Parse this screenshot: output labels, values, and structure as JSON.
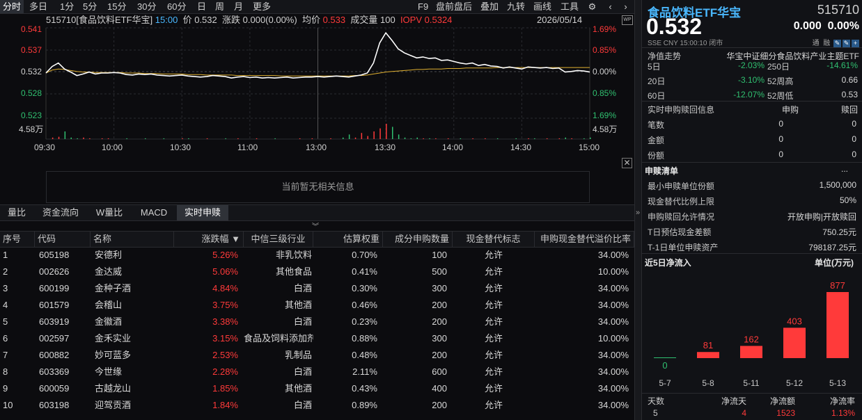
{
  "toolbar": {
    "left_items": [
      "分时",
      "多日",
      "1分",
      "5分",
      "15分",
      "30分",
      "60分",
      "日",
      "周",
      "月",
      "更多"
    ],
    "right_items": [
      "F9",
      "盘前盘后",
      "叠加",
      "九转",
      "画线",
      "工具"
    ],
    "active": "分时"
  },
  "chart": {
    "header": {
      "name": "515710[食品饮料ETF华宝]",
      "time": "15:00",
      "price_label": "价",
      "price": "0.532",
      "chg_label": "涨跌",
      "chg": "0.000(0.00%)",
      "avg_label": "均价",
      "avg": "0.533",
      "vol_label": "成交量",
      "vol": "100",
      "iopv_label": "IOPV",
      "iopv": "0.5324",
      "date": "2026/05/14"
    },
    "y_left": [
      "0.541",
      "0.537",
      "0.532",
      "0.528",
      "0.523"
    ],
    "y_right": [
      "1.69%",
      "0.85%",
      "0.00%",
      "0.85%",
      "1.69%"
    ],
    "vol_label": "4.58万",
    "x_labels": [
      "09:30",
      "10:00",
      "10:30",
      "11:00",
      "13:00",
      "13:30",
      "14:00",
      "14:30",
      "15:00"
    ]
  },
  "chart_data": {
    "type": "line",
    "ylim": [
      0.523,
      0.541
    ],
    "series": [
      {
        "values": [
          0.532,
          0.5333,
          0.534,
          0.5328,
          0.5322,
          0.5315,
          0.5318,
          0.5322,
          0.5318,
          0.532,
          0.532,
          0.5321,
          0.532,
          0.5317,
          0.5316,
          0.5318,
          0.5317,
          0.5318,
          0.5316,
          0.5315,
          0.5314,
          0.5315,
          0.5316,
          0.5314,
          0.5313,
          0.5312,
          0.5313,
          0.5315,
          0.5314,
          0.5313,
          0.531,
          0.5312,
          0.5313,
          0.5311,
          0.5312,
          0.531,
          0.5311,
          0.531,
          0.5311,
          0.5312,
          0.531,
          0.5311,
          0.5312,
          0.5312,
          0.5313,
          0.5312,
          0.5313,
          0.5314,
          0.5313,
          0.5312,
          0.5314,
          0.5316,
          0.532,
          0.534,
          0.538,
          0.54,
          0.5385,
          0.5368,
          0.536,
          0.5355,
          0.535,
          0.5352,
          0.5349,
          0.535,
          0.5345,
          0.5346,
          0.5343,
          0.534,
          0.5338,
          0.534,
          0.5335,
          0.5337,
          0.5334,
          0.5333,
          0.533,
          0.5332,
          0.533,
          0.5328,
          0.5332,
          0.5331,
          0.533,
          0.5331,
          0.5329,
          0.533,
          0.5322,
          0.5323,
          0.5325,
          0.5324,
          0.5322
        ]
      },
      {
        "values": [
          0.532,
          0.5326,
          0.5328,
          0.5327,
          0.5325,
          0.5323,
          0.5322,
          0.5322,
          0.5321,
          0.5321,
          0.5321,
          0.5321,
          0.5321,
          0.532,
          0.532,
          0.532,
          0.5319,
          0.5319,
          0.5319,
          0.5318,
          0.5318,
          0.5318,
          0.5318,
          0.5317,
          0.5317,
          0.5317,
          0.5316,
          0.5316,
          0.5316,
          0.5316,
          0.5316,
          0.5315,
          0.5315,
          0.5315,
          0.5315,
          0.5315,
          0.5315,
          0.5315,
          0.5314,
          0.5314,
          0.5314,
          0.5314,
          0.5314,
          0.5314,
          0.5314,
          0.5314,
          0.5314,
          0.5314,
          0.5314,
          0.5314,
          0.5315,
          0.5315,
          0.5316,
          0.5318,
          0.532,
          0.5322,
          0.5323,
          0.5324,
          0.5325,
          0.5326,
          0.5327,
          0.5327,
          0.5328,
          0.5328,
          0.5328,
          0.5329,
          0.5329,
          0.5329,
          0.533,
          0.533,
          0.533,
          0.533,
          0.533,
          0.5331,
          0.5331,
          0.5331,
          0.5331,
          0.5331,
          0.5331,
          0.5331,
          0.5331,
          0.5331,
          0.5331,
          0.5331,
          0.5331,
          0.5331,
          0.5331,
          0.5331,
          0.5331
        ]
      }
    ],
    "volume_bars": [
      0.0,
      0.1,
      0.15,
      0.5,
      0.1,
      0.05,
      0.1,
      0.05,
      0.0,
      0.05,
      0.05,
      0.0,
      0.0,
      0.05,
      0.0,
      0.0,
      0.05,
      0.0,
      0.0,
      0.05,
      0.0,
      0.0,
      0.05,
      0.05,
      0.0,
      0.0,
      0.05,
      0.0,
      0.0,
      0.05,
      0.0,
      0.05,
      0.0,
      0.0,
      0.05,
      0.0,
      0.0,
      0.05,
      0.0,
      0.0,
      0.0,
      0.05,
      0.0,
      0.05,
      0.0,
      0.0,
      0.05,
      0.0,
      0.1,
      0.3,
      0.1,
      0.4,
      0.2,
      0.5,
      0.7,
      1.0,
      0.8,
      0.3,
      0.1,
      0.05,
      0.1,
      0.05,
      0.05,
      0.05,
      0.0,
      0.05,
      0.0,
      0.05,
      0.0,
      0.05,
      0.0,
      0.05,
      0.0,
      0.05,
      0.0,
      0.0,
      0.05,
      0.0,
      0.05,
      0.05,
      0.0,
      0.05,
      0.0,
      0.05,
      0.1,
      0.05,
      0.0,
      0.05,
      0.1
    ]
  },
  "noinfo": "当前暂无相关信息",
  "tabs": {
    "items": [
      "量比",
      "资金流向",
      "W量比",
      "MACD",
      "实时申赎"
    ],
    "active": "实时申赎"
  },
  "table": {
    "headers": [
      "序号",
      "代码",
      "名称",
      "涨跌幅 ▼",
      "中信三级行业",
      "估算权重",
      "成分申购数量",
      "现金替代标志",
      "申购现金替代溢价比率"
    ],
    "rows": [
      [
        "1",
        "605198",
        "安德利",
        "5.26%",
        "非乳饮料",
        "0.70%",
        "100",
        "允许",
        "34.00%"
      ],
      [
        "2",
        "002626",
        "金达威",
        "5.06%",
        "其他食品",
        "0.41%",
        "500",
        "允许",
        "10.00%"
      ],
      [
        "3",
        "600199",
        "金种子酒",
        "4.84%",
        "白酒",
        "0.30%",
        "300",
        "允许",
        "34.00%"
      ],
      [
        "4",
        "601579",
        "会稽山",
        "3.75%",
        "其他酒",
        "0.46%",
        "200",
        "允许",
        "34.00%"
      ],
      [
        "5",
        "603919",
        "金徽酒",
        "3.38%",
        "白酒",
        "0.23%",
        "200",
        "允许",
        "34.00%"
      ],
      [
        "6",
        "002597",
        "金禾实业",
        "3.15%",
        "食品及饲料添加剂",
        "0.88%",
        "300",
        "允许",
        "10.00%"
      ],
      [
        "7",
        "600882",
        "妙可蓝多",
        "2.53%",
        "乳制品",
        "0.48%",
        "200",
        "允许",
        "34.00%"
      ],
      [
        "8",
        "603369",
        "今世缘",
        "2.28%",
        "白酒",
        "2.11%",
        "600",
        "允许",
        "34.00%"
      ],
      [
        "9",
        "600059",
        "古越龙山",
        "1.85%",
        "其他酒",
        "0.43%",
        "400",
        "允许",
        "34.00%"
      ],
      [
        "10",
        "603198",
        "迎驾贡酒",
        "1.84%",
        "白酒",
        "0.89%",
        "200",
        "允许",
        "34.00%"
      ]
    ]
  },
  "quote": {
    "name": "食品饮料ETF华宝",
    "code": "515710",
    "price": "0.532",
    "change": "0.000",
    "change_pct": "0.00%",
    "meta": "SSE  CNY  15:00:10  闭市",
    "badges": [
      "通",
      "融"
    ]
  },
  "perf": {
    "title": "净值走势",
    "index": "华宝中证细分食品饮料产业主题ETF",
    "rows": [
      {
        "l1": "5日",
        "v1": "-2.03%",
        "l2": "250日",
        "v2": "-14.61%",
        "c2": "green"
      },
      {
        "l1": "20日",
        "v1": "-3.10%",
        "l2": "52周高",
        "v2": "0.66",
        "c2": "white"
      },
      {
        "l1": "60日",
        "v1": "-12.07%",
        "l2": "52周低",
        "v2": "0.53",
        "c2": "white"
      }
    ]
  },
  "realtime": {
    "title": "实时申购赎回信息",
    "col1": "申购",
    "col2": "赎回",
    "rows": [
      {
        "label": "笔数",
        "a": "0",
        "b": "0"
      },
      {
        "label": "金额",
        "a": "0",
        "b": "0"
      },
      {
        "label": "份额",
        "a": "0",
        "b": "0"
      }
    ]
  },
  "pcf": {
    "title": "申赎清单",
    "more": "...",
    "rows": [
      {
        "label": "最小申赎单位份额",
        "value": "1,500,000"
      },
      {
        "label": "现金替代比例上限",
        "value": "50%"
      },
      {
        "label": "申购赎回允许情况",
        "value": "开放申购|开放赎回"
      },
      {
        "label": "T日预估现金差额",
        "value": "750.25元"
      },
      {
        "label": "T-1日单位申赎资产",
        "value": "798187.25元"
      }
    ]
  },
  "inflow": {
    "title": "近5日净流入",
    "unit": "单位(万元)",
    "chart_data": {
      "type": "bar",
      "categories": [
        "5-7",
        "5-8",
        "5-11",
        "5-12",
        "5-13"
      ],
      "values": [
        0,
        81,
        162,
        403,
        877
      ]
    },
    "summary_labels": [
      "天数",
      "净流天",
      "净流额",
      "净流率"
    ],
    "summary_values": [
      "5",
      "4",
      "1523",
      "1.13%"
    ]
  },
  "colors": {
    "up": "#ff3a3a",
    "down": "#30c070",
    "accent": "#4ab8ff",
    "avg_line": "#e0b030"
  }
}
